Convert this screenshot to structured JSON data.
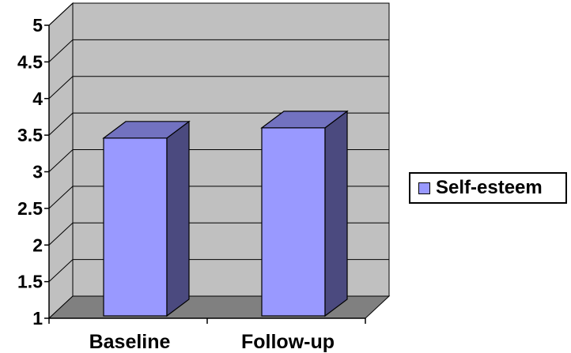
{
  "chart_data": {
    "type": "bar",
    "categories": [
      "Baseline",
      "Follow-up"
    ],
    "series": [
      {
        "name": "Self-esteem",
        "values": [
          3.46,
          3.6
        ],
        "color": "#9999ff",
        "side_color": "#4b4a7f",
        "top_color": "#7272c0"
      }
    ],
    "ylim": [
      1,
      5
    ],
    "yticks": [
      1,
      1.5,
      2,
      2.5,
      3,
      3.5,
      4,
      4.5,
      5
    ],
    "ytick_labels": [
      "1",
      "1.5",
      "2",
      "2.5",
      "3",
      "3.5",
      "4",
      "4.5",
      "5"
    ],
    "grid": true,
    "legend": "right",
    "wall_color": "#c0c0c0",
    "floor_color": "#808080",
    "style": "3d-column"
  }
}
